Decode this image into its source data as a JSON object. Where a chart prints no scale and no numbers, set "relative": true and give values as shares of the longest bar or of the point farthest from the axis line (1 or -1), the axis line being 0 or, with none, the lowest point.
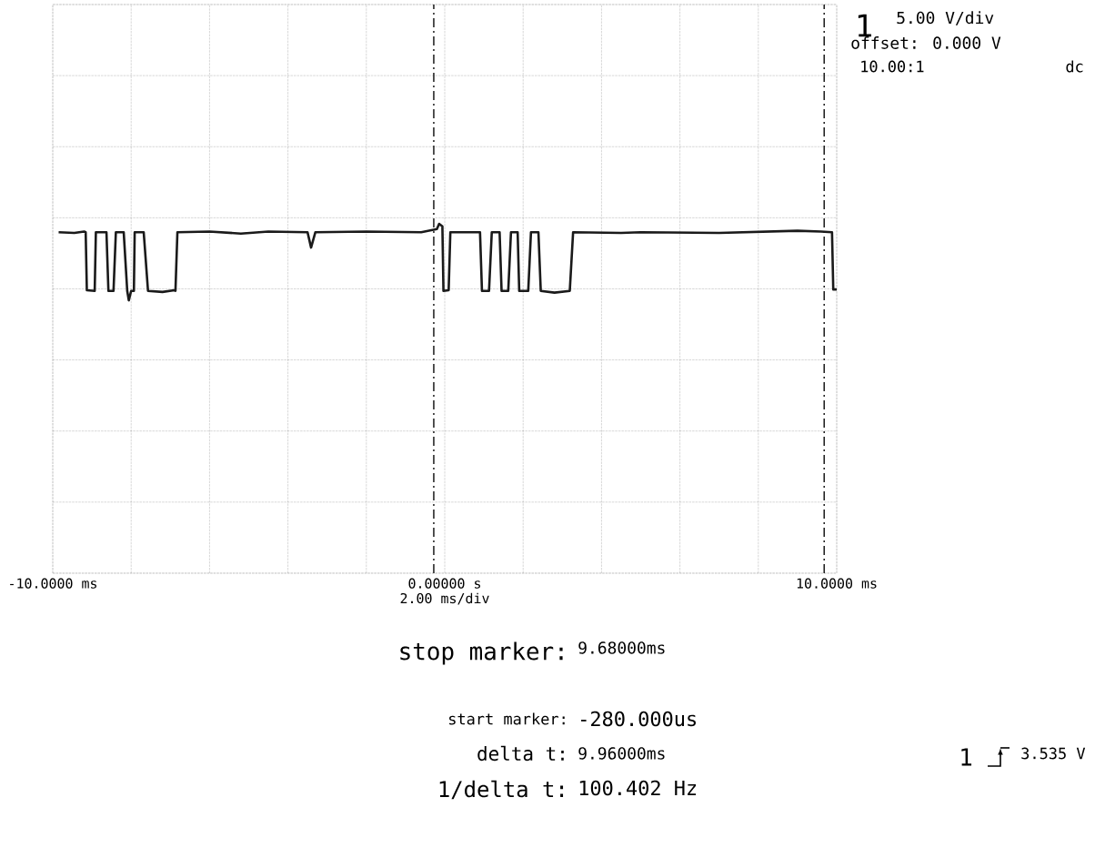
{
  "chart_data": {
    "type": "line",
    "relative": true,
    "grid": true,
    "xlabel": "2.00 ms/div",
    "xlim": [
      -10,
      10
    ],
    "xticks": [
      {
        "value": -10,
        "label": "-10.0000 ms"
      },
      {
        "value": -8,
        "label": null
      },
      {
        "value": -6,
        "label": null
      },
      {
        "value": -4,
        "label": null
      },
      {
        "value": -2,
        "label": null
      },
      {
        "value": 0,
        "label": "0.00000 s"
      },
      {
        "value": 2,
        "label": null
      },
      {
        "value": 4,
        "label": null
      },
      {
        "value": 6,
        "label": null
      },
      {
        "value": 8,
        "label": null
      },
      {
        "value": 10,
        "label": "10.0000 ms"
      }
    ],
    "x": [
      -9.85,
      -9.45,
      -9.2,
      -9.16,
      -9.13,
      -8.93,
      -8.9,
      -8.63,
      -8.58,
      -8.45,
      -8.39,
      -8.19,
      -8.1,
      -8.06,
      -8.0,
      -7.93,
      -7.91,
      -7.68,
      -7.57,
      -7.2,
      -6.9,
      -6.87,
      -6.82,
      -6.0,
      -5.2,
      -4.5,
      -3.5,
      -3.41,
      -3.3,
      -2.0,
      -0.6,
      -0.2,
      -0.143,
      -0.06,
      -0.033,
      0.1,
      0.143,
      0.9,
      0.95,
      1.13,
      1.2,
      1.4,
      1.45,
      1.62,
      1.69,
      1.86,
      1.9,
      2.13,
      2.2,
      2.39,
      2.45,
      2.8,
      3.19,
      3.275,
      4.5,
      5.0,
      7.0,
      9.0,
      9.6,
      9.88,
      9.912,
      10
    ],
    "series": [
      {
        "color": "#1a1a1a",
        "values": [
          0.976,
          0.974,
          0.978,
          0.976,
          0.81,
          0.808,
          0.976,
          0.976,
          0.808,
          0.808,
          0.976,
          0.976,
          0.808,
          0.781,
          0.808,
          0.808,
          0.976,
          0.976,
          0.808,
          0.805,
          0.81,
          0.808,
          0.976,
          0.978,
          0.972,
          0.978,
          0.976,
          0.932,
          0.976,
          0.978,
          0.976,
          0.985,
          1.0,
          0.993,
          0.808,
          0.81,
          0.976,
          0.976,
          0.808,
          0.808,
          0.976,
          0.976,
          0.808,
          0.808,
          0.976,
          0.976,
          0.808,
          0.808,
          0.976,
          0.976,
          0.808,
          0.803,
          0.808,
          0.976,
          0.974,
          0.976,
          0.974,
          0.98,
          0.978,
          0.976,
          0.812,
          0.812
        ]
      }
    ],
    "ref_lines": [
      {
        "axis": "x",
        "value": -0.28,
        "color": "#1a1a1a",
        "line_style": "dashed"
      },
      {
        "axis": "x",
        "value": 9.68,
        "color": "#1a1a1a",
        "line_style": "dashed"
      }
    ],
    "annotations": [
      "1",
      "5.00 V/div",
      "offset: 0.000 V",
      "10.00:1",
      "dc",
      "stop marker:",
      "9.68000ms",
      "start marker:",
      "-280.000us",
      "delta t:",
      "9.96000ms",
      "1/delta t:",
      "100.402 Hz",
      "1",
      "3.535 V"
    ]
  }
}
